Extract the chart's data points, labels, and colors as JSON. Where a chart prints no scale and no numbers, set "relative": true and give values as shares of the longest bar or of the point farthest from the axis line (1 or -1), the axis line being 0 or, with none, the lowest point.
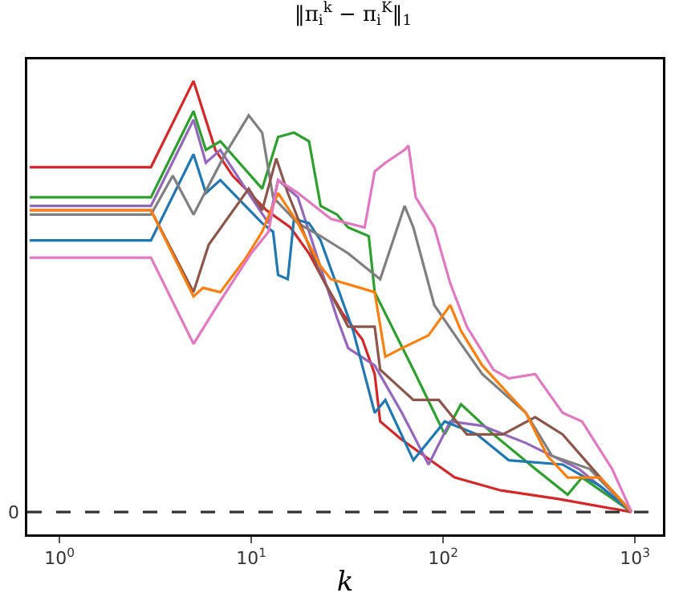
{
  "chart_data": {
    "type": "line",
    "title": "‖π$_{i}$$^{k}$ − π$_{i}$$^{K}$‖$_{1}$",
    "xlabel": "k",
    "relative": true,
    "log": "x",
    "grid": false,
    "marker": "none",
    "line_style": "solid",
    "xlim": [
      0.68,
      1400
    ],
    "xticks": [
      {
        "value": 1,
        "label": "10$^{0}$"
      },
      {
        "value": 10,
        "label": "10$^{1}$"
      },
      {
        "value": 100,
        "label": "10$^{2}$"
      },
      {
        "value": 1000,
        "label": "10$^{3}$"
      }
    ],
    "ref_lines": [
      {
        "axis": "y",
        "value": 0,
        "label": "0",
        "color": "#333333",
        "line_style": "dashed"
      }
    ],
    "series": [
      {
        "color": "#d62728",
        "x": [
          0.7,
          3,
          5,
          6.5,
          8,
          12,
          16,
          20,
          25,
          30,
          38,
          44,
          47,
          60,
          80,
          115,
          200,
          400,
          960
        ],
        "values": [
          0.8,
          0.8,
          1.0,
          0.84,
          0.78,
          0.7,
          0.66,
          0.6,
          0.52,
          0.46,
          0.4,
          0.32,
          0.21,
          0.17,
          0.13,
          0.08,
          0.05,
          0.03,
          0
        ]
      },
      {
        "color": "#2ca02c",
        "x": [
          0.7,
          3,
          5,
          5.8,
          6.9,
          11.4,
          13.8,
          16.7,
          20,
          23,
          28,
          32,
          41,
          44,
          70,
          102,
          124,
          183,
          302,
          446,
          530,
          960
        ],
        "values": [
          0.73,
          0.73,
          0.93,
          0.84,
          0.86,
          0.75,
          0.87,
          0.88,
          0.86,
          0.71,
          0.69,
          0.66,
          0.64,
          0.51,
          0.33,
          0.18,
          0.25,
          0.18,
          0.1,
          0.04,
          0.08,
          0
        ]
      },
      {
        "color": "#9467bd",
        "x": [
          0.7,
          3,
          5,
          5.8,
          6.9,
          10,
          12.3,
          13.8,
          17.5,
          28,
          32,
          44,
          61,
          84,
          109,
          160,
          270,
          510,
          960
        ],
        "values": [
          0.71,
          0.71,
          0.91,
          0.81,
          0.84,
          0.73,
          0.67,
          0.77,
          0.73,
          0.45,
          0.38,
          0.34,
          0.23,
          0.11,
          0.21,
          0.2,
          0.16,
          0.1,
          0
        ]
      },
      {
        "color": "#1f77b4",
        "x": [
          0.7,
          3,
          5,
          5.8,
          6.9,
          11.4,
          13,
          13.8,
          15.5,
          16.7,
          20,
          23,
          34,
          44,
          50,
          70,
          102,
          150,
          220,
          420,
          660,
          960
        ],
        "values": [
          0.63,
          0.63,
          0.83,
          0.74,
          0.77,
          0.67,
          0.65,
          0.55,
          0.54,
          0.68,
          0.67,
          0.63,
          0.42,
          0.23,
          0.26,
          0.12,
          0.21,
          0.18,
          0.12,
          0.11,
          0.06,
          0
        ]
      },
      {
        "color": "#7f7f7f",
        "x": [
          0.7,
          3,
          3.9,
          5,
          7.3,
          9.7,
          11.4,
          13,
          17.5,
          23,
          32,
          44,
          47,
          63,
          70,
          90,
          124,
          160,
          270,
          370,
          580,
          960
        ],
        "values": [
          0.69,
          0.69,
          0.78,
          0.69,
          0.83,
          0.92,
          0.88,
          0.73,
          0.67,
          0.64,
          0.6,
          0.55,
          0.54,
          0.71,
          0.66,
          0.48,
          0.39,
          0.32,
          0.23,
          0.13,
          0.1,
          0
        ]
      },
      {
        "color": "#8c564b",
        "x": [
          0.7,
          3,
          5,
          6,
          9.7,
          11.4,
          13.5,
          15.5,
          23,
          32,
          44,
          47,
          70,
          95,
          133,
          205,
          302,
          420,
          660,
          960
        ],
        "values": [
          0.7,
          0.7,
          0.51,
          0.62,
          0.75,
          0.7,
          0.82,
          0.74,
          0.55,
          0.43,
          0.43,
          0.33,
          0.26,
          0.26,
          0.18,
          0.18,
          0.22,
          0.18,
          0.08,
          0
        ]
      },
      {
        "color": "#ff7f0e",
        "x": [
          0.7,
          3,
          5,
          5.6,
          6.9,
          9.4,
          11.4,
          13.8,
          17.5,
          23,
          26,
          44,
          50,
          61,
          84,
          109,
          124,
          160,
          270,
          350,
          446,
          660,
          960
        ],
        "values": [
          0.7,
          0.7,
          0.5,
          0.52,
          0.51,
          0.59,
          0.65,
          0.74,
          0.67,
          0.57,
          0.54,
          0.51,
          0.36,
          0.38,
          0.41,
          0.48,
          0.42,
          0.34,
          0.23,
          0.13,
          0.08,
          0.08,
          0
        ]
      },
      {
        "color": "#e377c2",
        "x": [
          0.7,
          3,
          5,
          6.9,
          10,
          12.3,
          13.8,
          17.5,
          26,
          39,
          44,
          50,
          63,
          66,
          72,
          90,
          109,
          133,
          183,
          220,
          302,
          420,
          530,
          760,
          960
        ],
        "values": [
          0.59,
          0.59,
          0.39,
          0.49,
          0.6,
          0.65,
          0.77,
          0.74,
          0.68,
          0.66,
          0.79,
          0.81,
          0.84,
          0.85,
          0.73,
          0.66,
          0.53,
          0.43,
          0.33,
          0.31,
          0.32,
          0.23,
          0.21,
          0.1,
          0
        ]
      }
    ]
  }
}
